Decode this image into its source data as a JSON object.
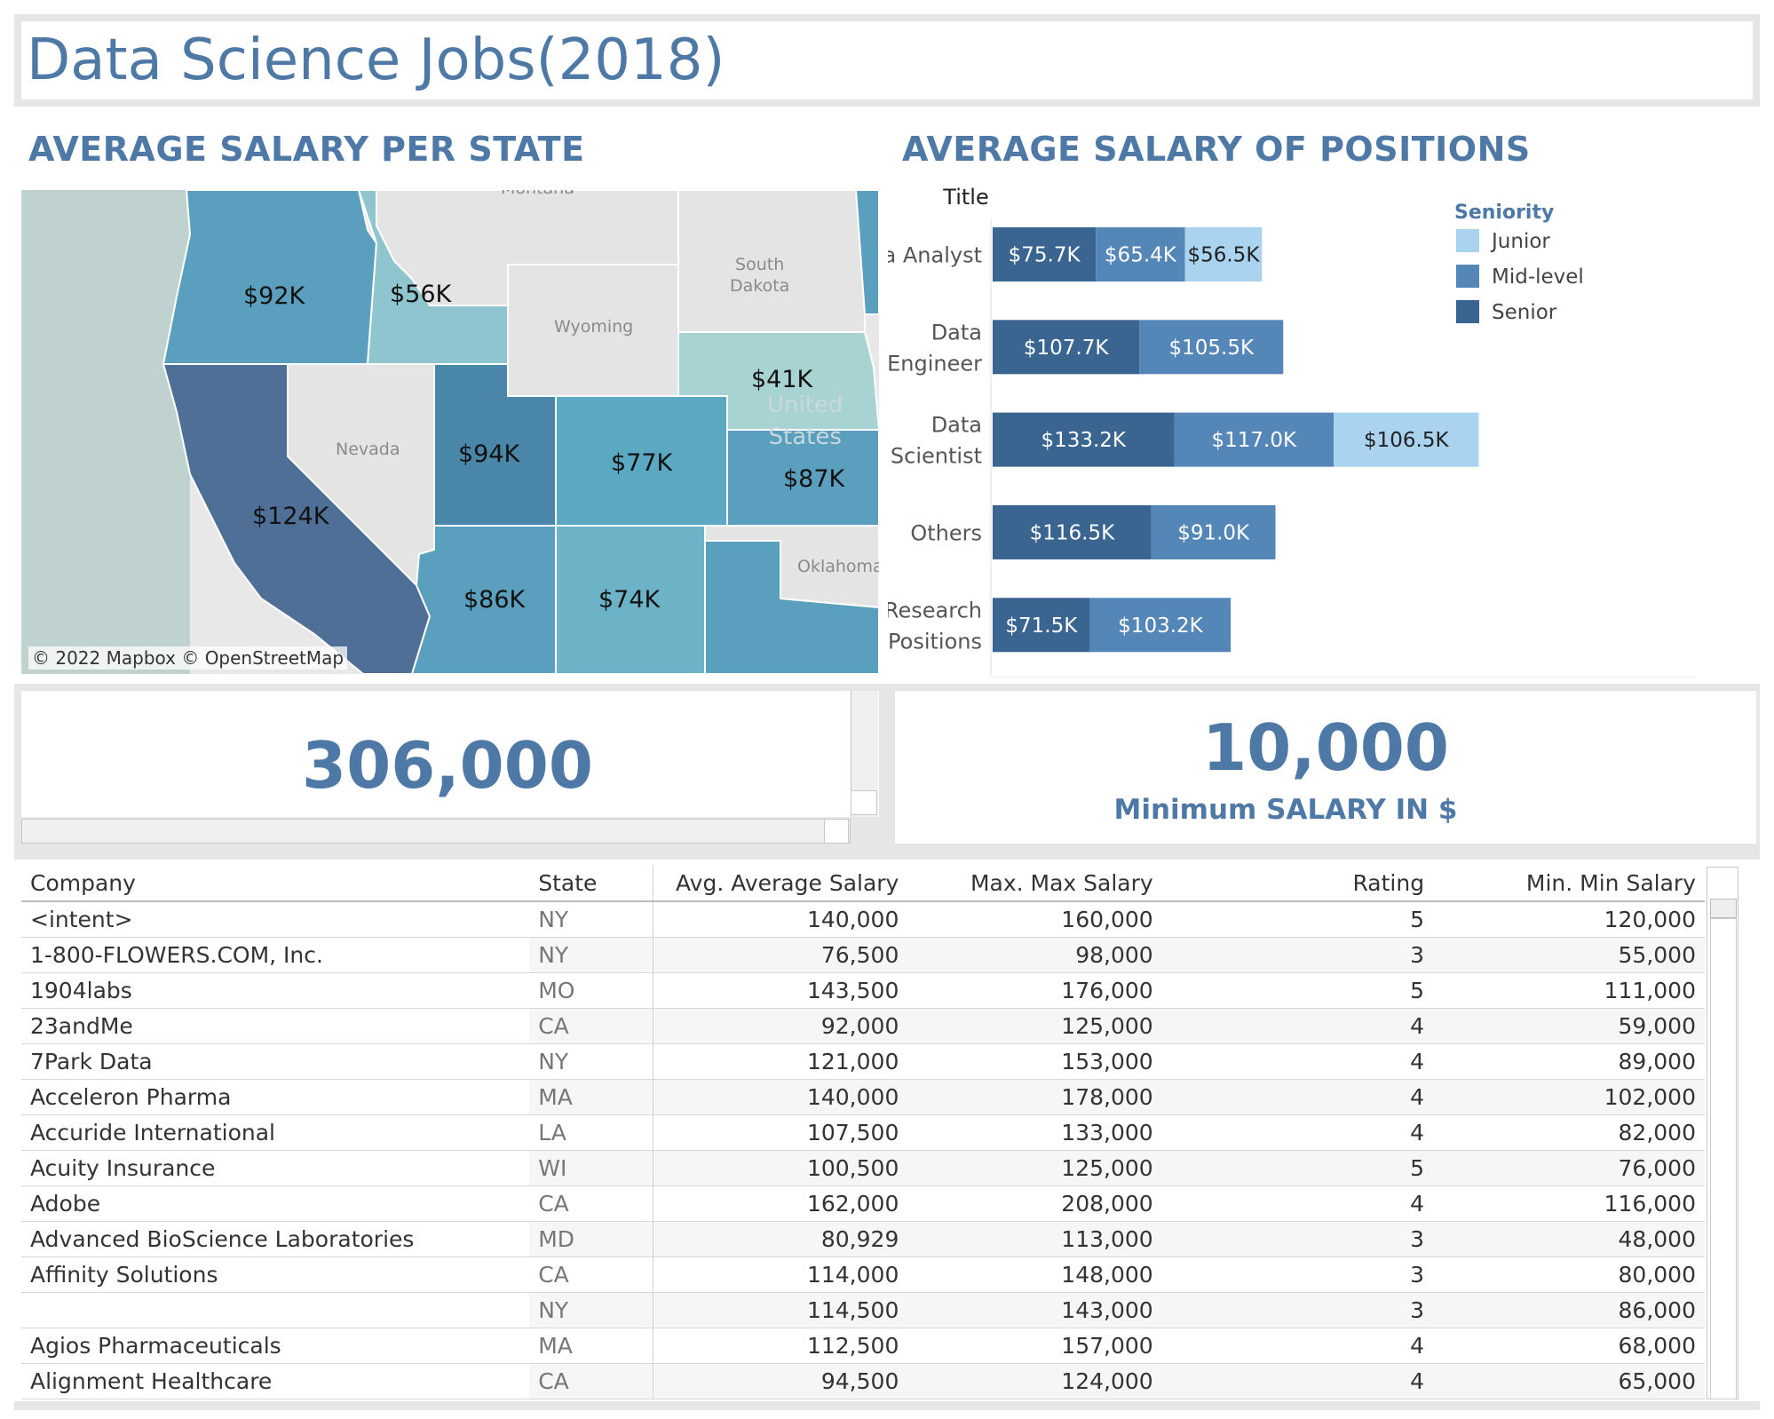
{
  "dashboard": {
    "title": "Data Science Jobs(2018)"
  },
  "map_section": {
    "title": "AVERAGE SALARY PER STATE",
    "credit": "© 2022 Mapbox © OpenStreetMap",
    "labels": {
      "wa": "$92K",
      "id": "$56K",
      "sd": "$41K",
      "ca": "$124K",
      "ut": "$94K",
      "co": "$77K",
      "ks": "$87K",
      "az": "$86K",
      "nm": "$74K"
    },
    "geo_names": {
      "montana": "Montana",
      "south_dakota": "South\nDakota",
      "wyoming": "Wyoming",
      "nevada": "Nevada",
      "united_states": "United\nStates",
      "oklahoma": "Oklahoma"
    },
    "colors": {
      "ocean": "#bfd2d0",
      "land": "#e8e8e8",
      "dark": "#4f6f96",
      "mid_dark": "#4a86a8",
      "mid": "#5a9fbd",
      "mid_light": "#6db3c7",
      "light": "#8ec5ce",
      "lightest": "#a7d4d2"
    }
  },
  "bar_section": {
    "title": "AVERAGE SALARY OF POSITIONS",
    "axis_header": "Title",
    "legend_title": "Seniority"
  },
  "chart_data": {
    "type": "bar",
    "orientation": "horizontal",
    "stacked": true,
    "title": "AVERAGE SALARY OF POSITIONS",
    "ylabel": "Title",
    "categories": [
      [
        "Data Analyst"
      ],
      [
        "Data",
        "Engineer"
      ],
      [
        "Data",
        "Scientist"
      ],
      [
        "Others"
      ],
      [
        "Research",
        "Positions"
      ]
    ],
    "series": [
      {
        "name": "Senior",
        "color": "#3a6591",
        "values": [
          75.7,
          107.7,
          133.2,
          116.5,
          71.5
        ],
        "labels": [
          "$75.7K",
          "$107.7K",
          "$133.2K",
          "$116.5K",
          "$71.5K"
        ]
      },
      {
        "name": "Mid-level",
        "color": "#5586b8",
        "values": [
          65.4,
          105.5,
          117.0,
          91.0,
          103.2
        ],
        "labels": [
          "$65.4K",
          "$105.5K",
          "$117.0K",
          "$91.0K",
          "$103.2K"
        ]
      },
      {
        "name": "Junior",
        "color": "#a9d3ee",
        "values": [
          56.5,
          null,
          106.5,
          null,
          null
        ],
        "labels": [
          "$56.5K",
          "",
          "$106.5K",
          "",
          ""
        ]
      }
    ],
    "legend_order": [
      "Junior",
      "Mid-level",
      "Senior"
    ],
    "legend_placement": "top-right",
    "grid": false
  },
  "kpis": {
    "count_value": "306,000",
    "min_salary_value": "10,000",
    "min_salary_label": "Minimum SALARY IN $"
  },
  "table": {
    "headers": [
      "Company",
      "State",
      "Avg. Average Salary",
      "Max. Max Salary",
      "Rating",
      "Min. Min Salary"
    ],
    "rows": [
      [
        "<intent>",
        "NY",
        "140,000",
        "160,000",
        "5",
        "120,000"
      ],
      [
        "1-800-FLOWERS.COM, Inc.",
        "NY",
        "76,500",
        "98,000",
        "3",
        "55,000"
      ],
      [
        "1904labs",
        "MO",
        "143,500",
        "176,000",
        "5",
        "111,000"
      ],
      [
        "23andMe",
        "CA",
        "92,000",
        "125,000",
        "4",
        "59,000"
      ],
      [
        "7Park Data",
        "NY",
        "121,000",
        "153,000",
        "4",
        "89,000"
      ],
      [
        "Acceleron Pharma",
        "MA",
        "140,000",
        "178,000",
        "4",
        "102,000"
      ],
      [
        "Accuride International",
        "LA",
        "107,500",
        "133,000",
        "4",
        "82,000"
      ],
      [
        "Acuity Insurance",
        "WI",
        "100,500",
        "125,000",
        "5",
        "76,000"
      ],
      [
        "Adobe",
        "CA",
        "162,000",
        "208,000",
        "4",
        "116,000"
      ],
      [
        "Advanced BioScience Laboratories",
        "MD",
        "80,929",
        "113,000",
        "3",
        "48,000"
      ],
      [
        "Affinity Solutions",
        "CA",
        "114,000",
        "148,000",
        "3",
        "80,000"
      ],
      [
        "",
        "NY",
        "114,500",
        "143,000",
        "3",
        "86,000"
      ],
      [
        "Agios Pharmaceuticals",
        "MA",
        "112,500",
        "157,000",
        "4",
        "68,000"
      ],
      [
        "Alignment Healthcare",
        "CA",
        "94,500",
        "124,000",
        "4",
        "65,000"
      ]
    ]
  }
}
